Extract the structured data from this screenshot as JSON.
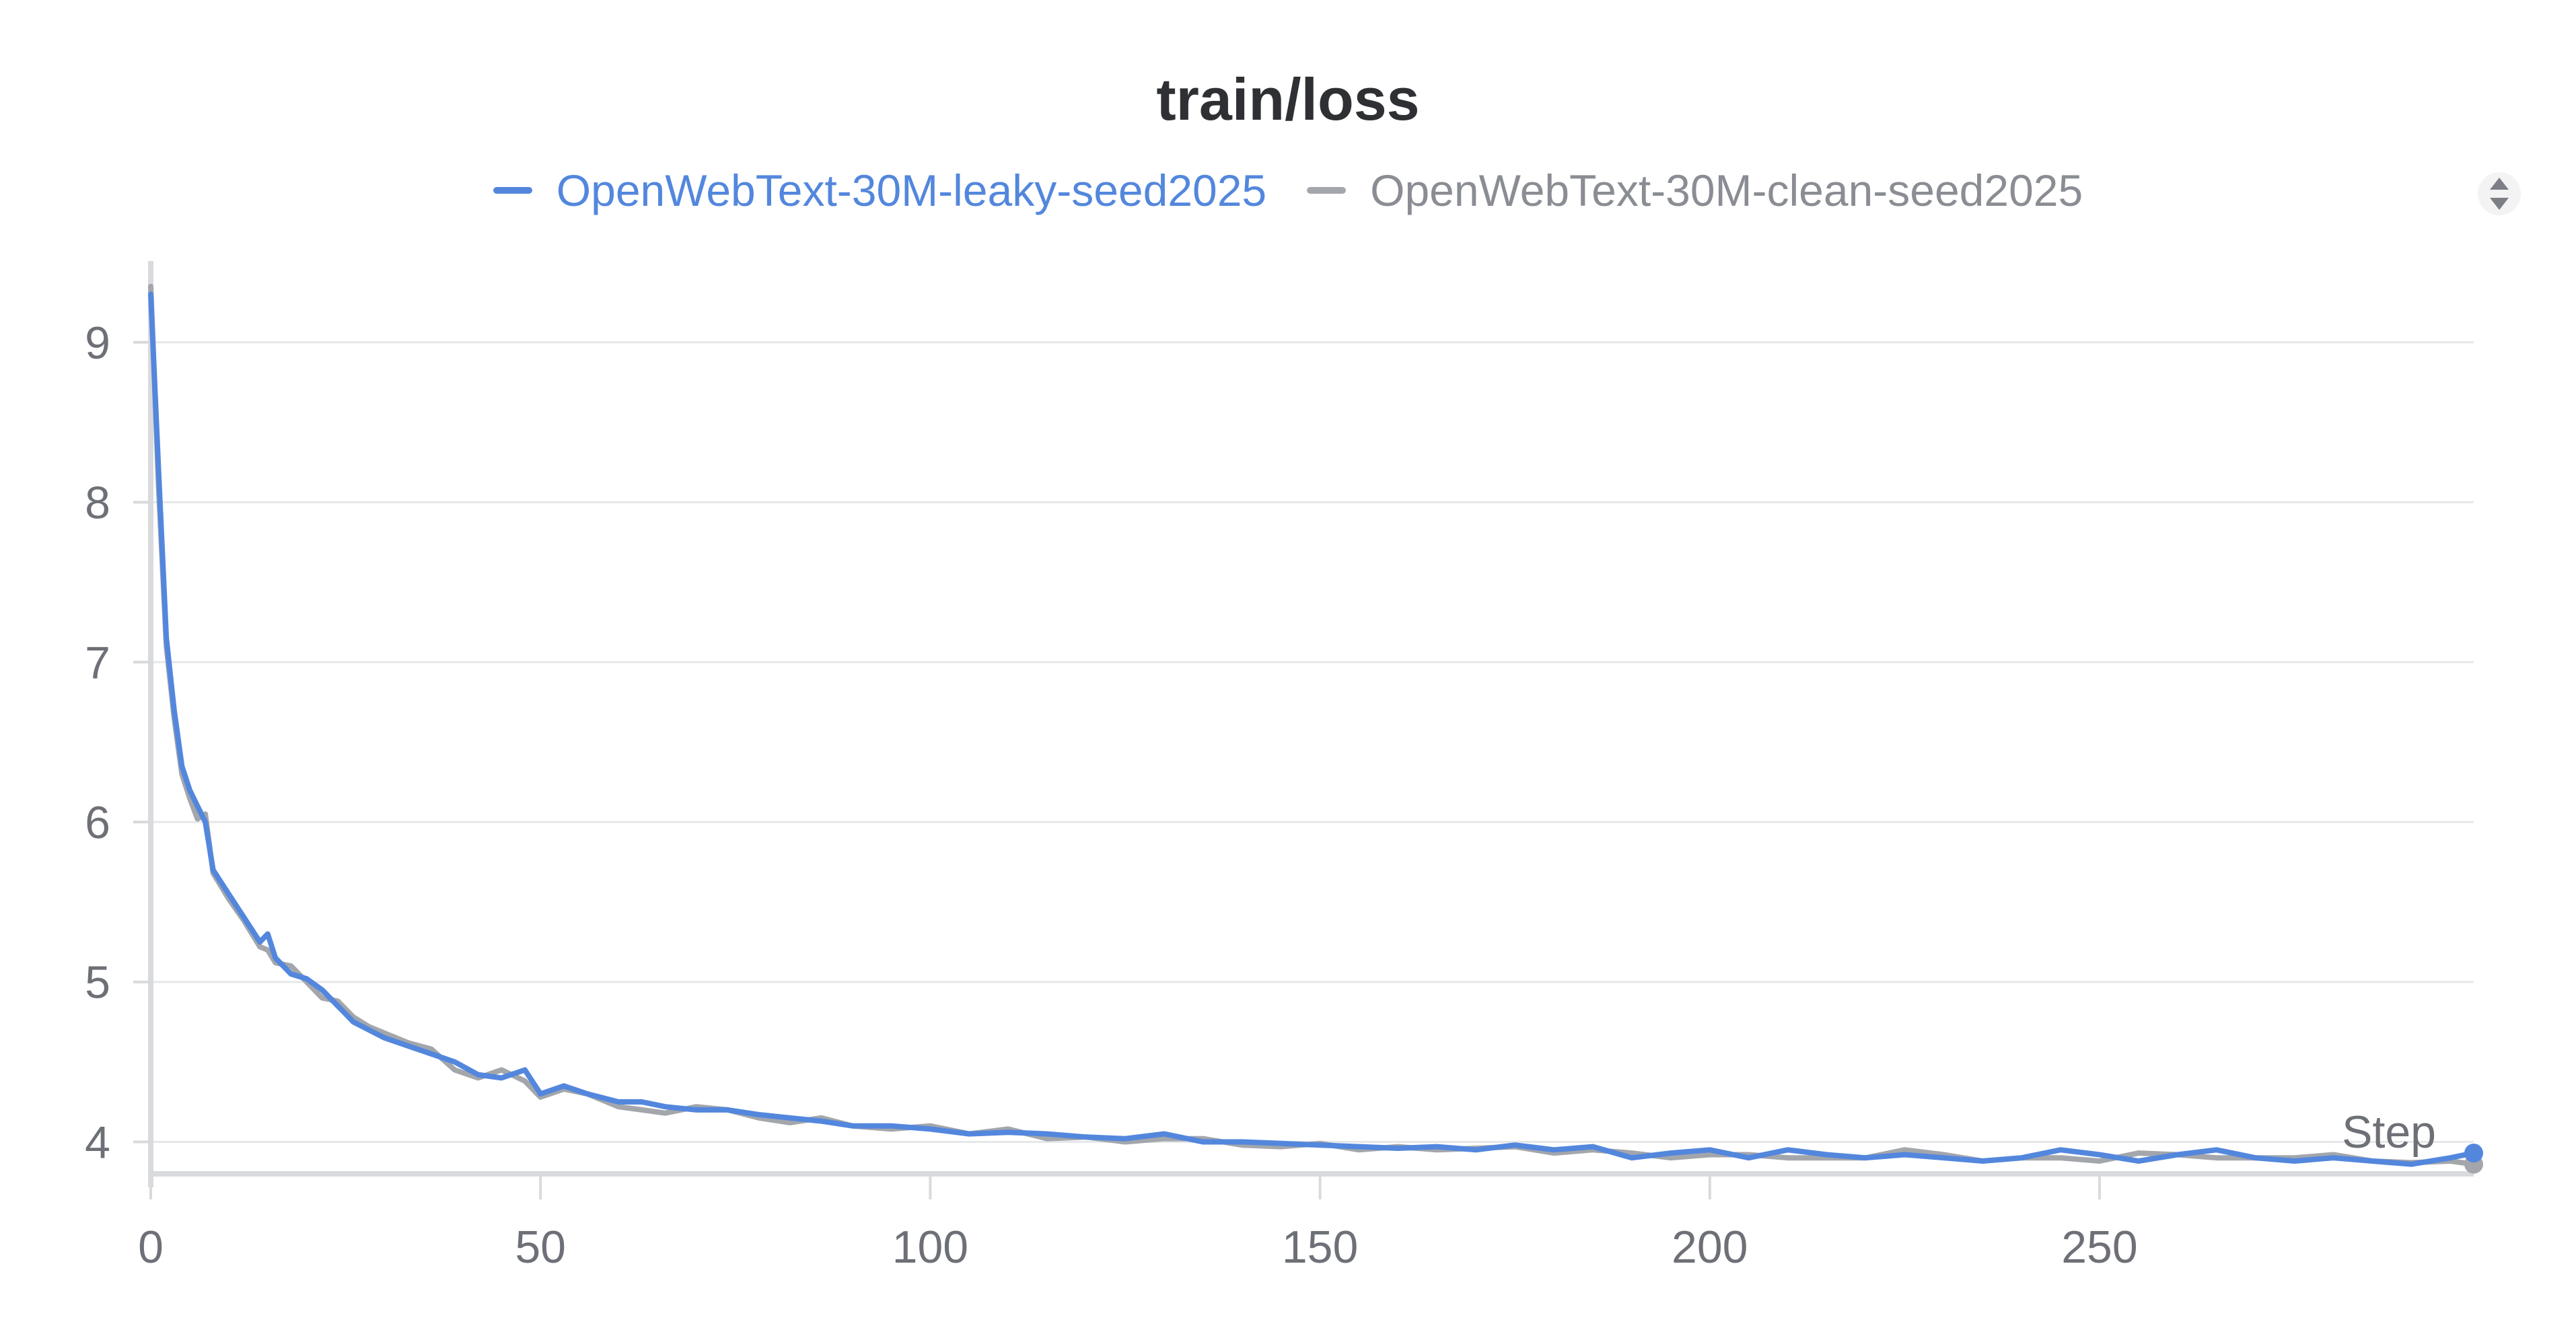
{
  "chart_data": {
    "type": "line",
    "title": "train/loss",
    "xlabel": "Step",
    "ylabel": "",
    "xlim": [
      0,
      298
    ],
    "ylim": [
      3.8,
      9.5
    ],
    "x_ticks": [
      0,
      50,
      100,
      150,
      200,
      250
    ],
    "y_ticks": [
      4,
      5,
      6,
      7,
      8,
      9
    ],
    "grid": "horizontal",
    "legend_position": "top-center",
    "series": [
      {
        "name": "OpenWebText-30M-leaky-seed2025",
        "color": "#5387dd",
        "x": [
          0,
          1,
          2,
          3,
          4,
          5,
          6,
          7,
          8,
          10,
          12,
          14,
          15,
          16,
          18,
          20,
          22,
          24,
          26,
          28,
          30,
          33,
          36,
          39,
          42,
          45,
          48,
          50,
          53,
          56,
          60,
          63,
          66,
          70,
          74,
          78,
          82,
          86,
          90,
          95,
          100,
          105,
          110,
          115,
          120,
          125,
          130,
          135,
          140,
          145,
          150,
          155,
          160,
          165,
          170,
          175,
          180,
          185,
          190,
          195,
          200,
          205,
          210,
          215,
          220,
          225,
          230,
          235,
          240,
          245,
          250,
          255,
          260,
          265,
          270,
          275,
          280,
          285,
          290,
          295,
          298
        ],
        "y": [
          9.3,
          8.2,
          7.15,
          6.7,
          6.35,
          6.2,
          6.1,
          6.0,
          5.7,
          5.55,
          5.4,
          5.25,
          5.3,
          5.15,
          5.05,
          5.02,
          4.95,
          4.85,
          4.75,
          4.7,
          4.65,
          4.6,
          4.55,
          4.5,
          4.42,
          4.4,
          4.45,
          4.3,
          4.35,
          4.3,
          4.25,
          4.25,
          4.22,
          4.2,
          4.2,
          4.17,
          4.15,
          4.13,
          4.1,
          4.1,
          4.08,
          4.05,
          4.06,
          4.05,
          4.03,
          4.02,
          4.05,
          4.0,
          4.0,
          3.99,
          3.98,
          3.97,
          3.96,
          3.97,
          3.95,
          3.98,
          3.95,
          3.97,
          3.9,
          3.93,
          3.95,
          3.9,
          3.95,
          3.92,
          3.9,
          3.92,
          3.9,
          3.88,
          3.9,
          3.95,
          3.92,
          3.88,
          3.92,
          3.95,
          3.9,
          3.88,
          3.9,
          3.88,
          3.86,
          3.9,
          3.93
        ]
      },
      {
        "name": "OpenWebText-30M-clean-seed2025",
        "color": "#a3a6ab",
        "x": [
          0,
          1,
          2,
          3,
          4,
          5,
          6,
          7,
          8,
          10,
          12,
          14,
          15,
          16,
          18,
          20,
          22,
          24,
          26,
          28,
          30,
          33,
          36,
          39,
          42,
          45,
          48,
          50,
          53,
          56,
          60,
          63,
          66,
          70,
          74,
          78,
          82,
          86,
          90,
          95,
          100,
          105,
          110,
          115,
          120,
          125,
          130,
          135,
          140,
          145,
          150,
          155,
          160,
          165,
          170,
          175,
          180,
          185,
          190,
          195,
          200,
          205,
          210,
          215,
          220,
          225,
          230,
          235,
          240,
          245,
          250,
          255,
          260,
          265,
          270,
          275,
          280,
          285,
          290,
          295,
          298
        ],
        "y": [
          9.35,
          8.1,
          7.1,
          6.65,
          6.3,
          6.15,
          6.02,
          6.05,
          5.68,
          5.52,
          5.38,
          5.22,
          5.2,
          5.12,
          5.1,
          5.0,
          4.9,
          4.88,
          4.78,
          4.72,
          4.68,
          4.62,
          4.58,
          4.45,
          4.4,
          4.45,
          4.38,
          4.28,
          4.33,
          4.3,
          4.22,
          4.2,
          4.18,
          4.22,
          4.2,
          4.15,
          4.12,
          4.15,
          4.1,
          4.08,
          4.1,
          4.05,
          4.08,
          4.02,
          4.03,
          4.0,
          4.02,
          4.02,
          3.98,
          3.97,
          3.99,
          3.95,
          3.97,
          3.95,
          3.96,
          3.97,
          3.93,
          3.95,
          3.93,
          3.9,
          3.92,
          3.92,
          3.9,
          3.9,
          3.9,
          3.95,
          3.92,
          3.88,
          3.9,
          3.9,
          3.88,
          3.93,
          3.92,
          3.9,
          3.9,
          3.9,
          3.92,
          3.88,
          3.87,
          3.88,
          3.86
        ]
      }
    ]
  }
}
